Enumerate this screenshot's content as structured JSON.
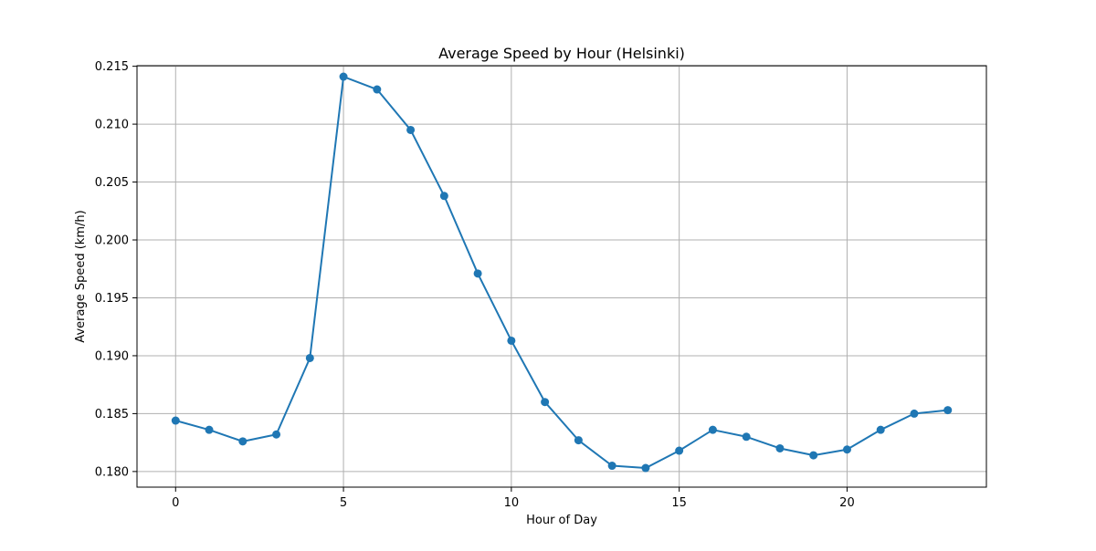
{
  "chart_data": {
    "type": "line",
    "title": "Average Speed by Hour (Helsinki)",
    "xlabel": "Hour of Day",
    "ylabel": "Average Speed (km/h)",
    "xlim": [
      -1.15,
      24.15
    ],
    "ylim": [
      0.17865,
      0.21505
    ],
    "xticks": [
      0,
      5,
      10,
      15,
      20
    ],
    "yticks": [
      0.18,
      0.185,
      0.19,
      0.195,
      0.2,
      0.205,
      0.21,
      0.215
    ],
    "ytick_labels": [
      "0.180",
      "0.185",
      "0.190",
      "0.195",
      "0.200",
      "0.205",
      "0.210",
      "0.215"
    ],
    "grid": true,
    "legend": "none",
    "series": [
      {
        "color": "#1f77b4",
        "marker": "circle",
        "x": [
          0,
          1,
          2,
          3,
          4,
          5,
          6,
          7,
          8,
          9,
          10,
          11,
          12,
          13,
          14,
          15,
          16,
          17,
          18,
          19,
          20,
          21,
          22,
          23
        ],
        "values": [
          0.1844,
          0.1836,
          0.1826,
          0.1832,
          0.1898,
          0.2141,
          0.213,
          0.2095,
          0.2038,
          0.1971,
          0.1913,
          0.186,
          0.1827,
          0.1805,
          0.1803,
          0.1818,
          0.1836,
          0.183,
          0.182,
          0.1814,
          0.1819,
          0.1836,
          0.185,
          0.1853
        ]
      }
    ]
  }
}
